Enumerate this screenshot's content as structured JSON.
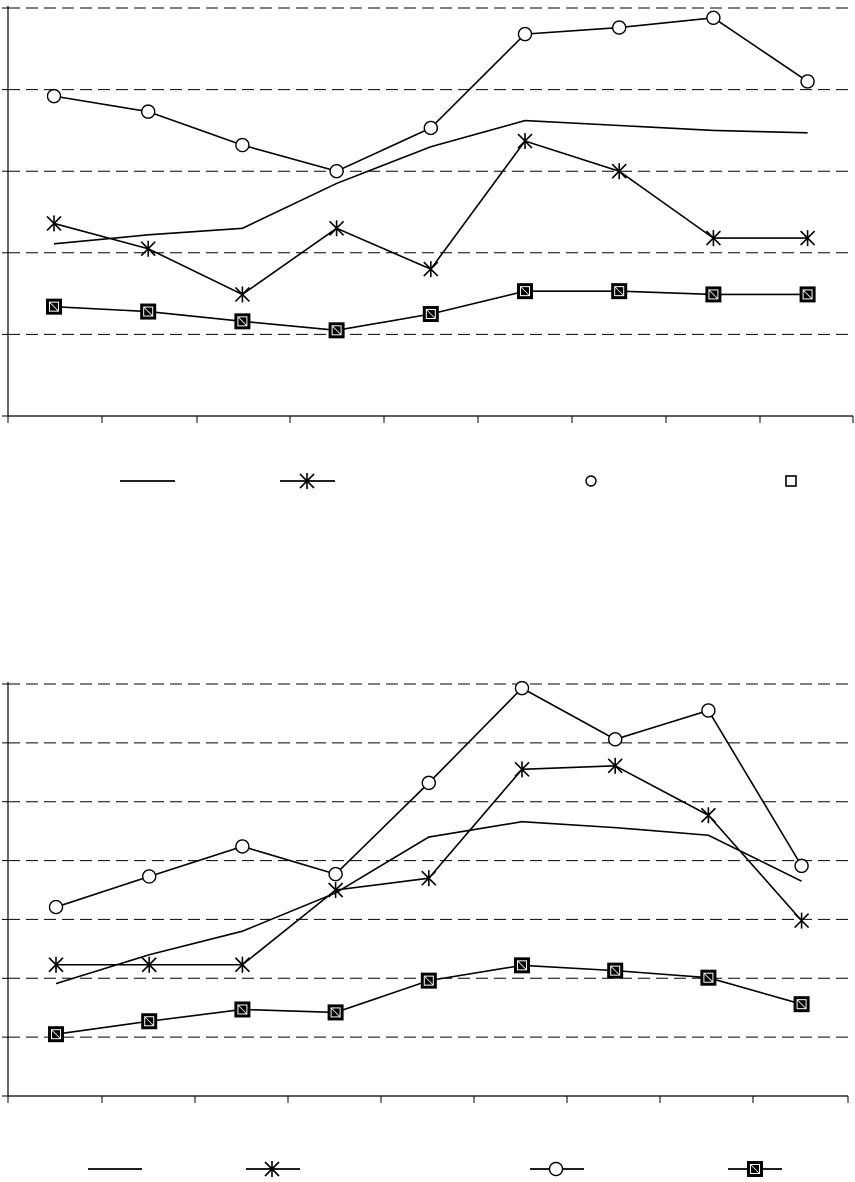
{
  "chart_data": [
    {
      "type": "line",
      "title": "",
      "xlabel": "",
      "ylabel": "",
      "x": [
        1,
        2,
        3,
        4,
        5,
        6,
        7,
        8,
        9
      ],
      "ylim": [
        0,
        5
      ],
      "y_gridlines": [
        1,
        2,
        3,
        4,
        5
      ],
      "grid": true,
      "legend_position": "bottom",
      "series": [
        {
          "marker": "none",
          "values": [
            2.11,
            2.22,
            2.3,
            2.85,
            3.3,
            3.62,
            3.56,
            3.5,
            3.47
          ]
        },
        {
          "marker": "asterisk",
          "values": [
            2.36,
            2.05,
            1.49,
            2.3,
            1.8,
            3.37,
            3.0,
            2.18,
            2.18
          ]
        },
        {
          "marker": "circle-open",
          "values": [
            3.92,
            3.73,
            3.32,
            3.0,
            3.53,
            4.68,
            4.76,
            4.88,
            4.1
          ]
        },
        {
          "marker": "square-filled",
          "values": [
            1.34,
            1.28,
            1.16,
            1.05,
            1.25,
            1.53,
            1.53,
            1.49,
            1.49
          ]
        }
      ]
    },
    {
      "type": "line",
      "title": "",
      "xlabel": "",
      "ylabel": "",
      "x": [
        1,
        2,
        3,
        4,
        5,
        6,
        7,
        8,
        9
      ],
      "ylim": [
        0,
        7
      ],
      "y_gridlines": [
        1,
        2,
        3,
        4,
        5,
        6,
        7
      ],
      "grid": true,
      "legend_position": "bottom",
      "series": [
        {
          "marker": "none",
          "values": [
            1.91,
            2.4,
            2.8,
            3.45,
            4.4,
            4.66,
            4.56,
            4.43,
            3.65
          ]
        },
        {
          "marker": "asterisk",
          "values": [
            2.23,
            2.23,
            2.23,
            3.5,
            3.7,
            5.55,
            5.61,
            4.77,
            2.98
          ]
        },
        {
          "marker": "circle-open",
          "values": [
            3.21,
            3.73,
            4.24,
            3.77,
            5.32,
            6.93,
            6.06,
            6.55,
            3.91
          ]
        },
        {
          "marker": "square-filled",
          "values": [
            1.05,
            1.27,
            1.47,
            1.42,
            1.96,
            2.22,
            2.13,
            2.01,
            1.56
          ]
        }
      ]
    }
  ]
}
